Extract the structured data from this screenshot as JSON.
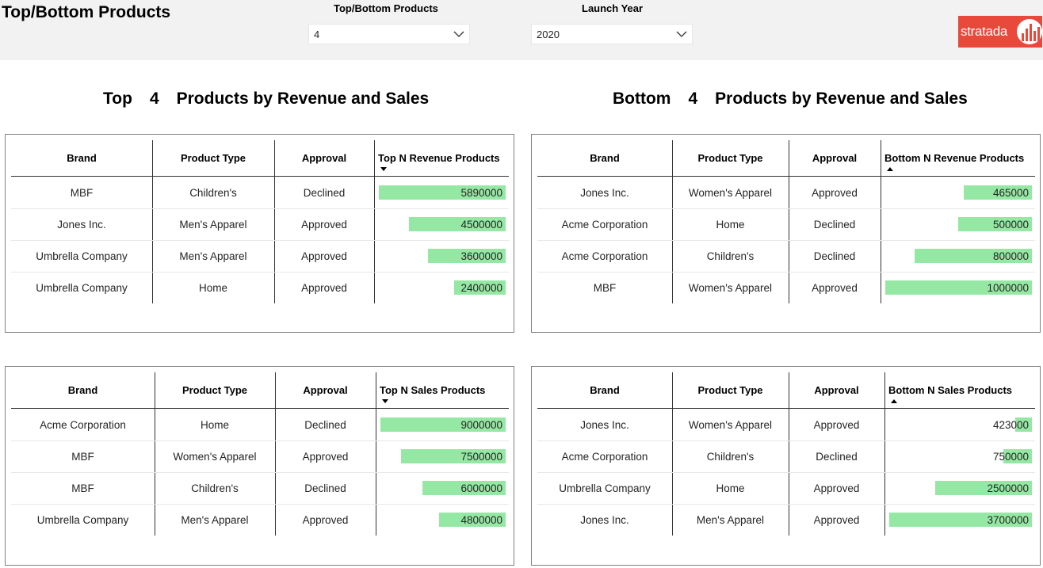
{
  "header": {
    "title": "Top/Bottom Products",
    "slicers": [
      {
        "label": "Top/Bottom Products",
        "value": "4"
      },
      {
        "label": "Launch Year",
        "value": "2020"
      }
    ],
    "logo_text": "stratada"
  },
  "sections": {
    "top": {
      "word": "Top",
      "n": "4",
      "rest": "Products by Revenue and Sales"
    },
    "bottom": {
      "word": "Bottom",
      "n": "4",
      "rest": "Products by Revenue and Sales"
    }
  },
  "tables": [
    {
      "id": "top-revenue",
      "columns": [
        "Brand",
        "Product Type",
        "Approval",
        "Top N Revenue Products"
      ],
      "sort": "descending",
      "max": 5890000,
      "rows": [
        {
          "brand": "MBF",
          "type": "Children's",
          "approval": "Declined",
          "value": 5890000,
          "text": "5890000"
        },
        {
          "brand": "Jones Inc.",
          "type": "Men's Apparel",
          "approval": "Approved",
          "value": 4500000,
          "text": "4500000"
        },
        {
          "brand": "Umbrella Company",
          "type": "Men's Apparel",
          "approval": "Approved",
          "value": 3600000,
          "text": "3600000"
        },
        {
          "brand": "Umbrella Company",
          "type": "Home",
          "approval": "Approved",
          "value": 2400000,
          "text": "2400000"
        }
      ]
    },
    {
      "id": "bottom-revenue",
      "columns": [
        "Brand",
        "Product Type",
        "Approval",
        "Bottom N Revenue Products"
      ],
      "sort": "ascending",
      "max": 1000000,
      "rows": [
        {
          "brand": "Jones Inc.",
          "type": "Women's Apparel",
          "approval": "Approved",
          "value": 465000,
          "text": "465000"
        },
        {
          "brand": "Acme Corporation",
          "type": "Home",
          "approval": "Declined",
          "value": 500000,
          "text": "500000"
        },
        {
          "brand": "Acme Corporation",
          "type": "Children's",
          "approval": "Declined",
          "value": 800000,
          "text": "800000"
        },
        {
          "brand": "MBF",
          "type": "Women's Apparel",
          "approval": "Approved",
          "value": 1000000,
          "text": "1000000"
        }
      ]
    },
    {
      "id": "top-sales",
      "columns": [
        "Brand",
        "Product Type",
        "Approval",
        "Top N Sales Products"
      ],
      "sort": "descending",
      "max": 9000000,
      "rows": [
        {
          "brand": "Acme Corporation",
          "type": "Home",
          "approval": "Declined",
          "value": 9000000,
          "text": "9000000"
        },
        {
          "brand": "MBF",
          "type": "Women's Apparel",
          "approval": "Approved",
          "value": 7500000,
          "text": "7500000"
        },
        {
          "brand": "MBF",
          "type": "Children's",
          "approval": "Declined",
          "value": 6000000,
          "text": "6000000"
        },
        {
          "brand": "Umbrella Company",
          "type": "Men's Apparel",
          "approval": "Approved",
          "value": 4800000,
          "text": "4800000"
        }
      ]
    },
    {
      "id": "bottom-sales",
      "columns": [
        "Brand",
        "Product Type",
        "Approval",
        "Bottom N Sales Products"
      ],
      "sort": "ascending",
      "max": 3700000,
      "rows": [
        {
          "brand": "Jones Inc.",
          "type": "Women's Apparel",
          "approval": "Approved",
          "value": 423000,
          "text": "423000"
        },
        {
          "brand": "Acme Corporation",
          "type": "Children's",
          "approval": "Declined",
          "value": 750000,
          "text": "750000"
        },
        {
          "brand": "Umbrella Company",
          "type": "Home",
          "approval": "Approved",
          "value": 2500000,
          "text": "2500000"
        },
        {
          "brand": "Jones Inc.",
          "type": "Men's Apparel",
          "approval": "Approved",
          "value": 3700000,
          "text": "3700000"
        }
      ]
    }
  ]
}
